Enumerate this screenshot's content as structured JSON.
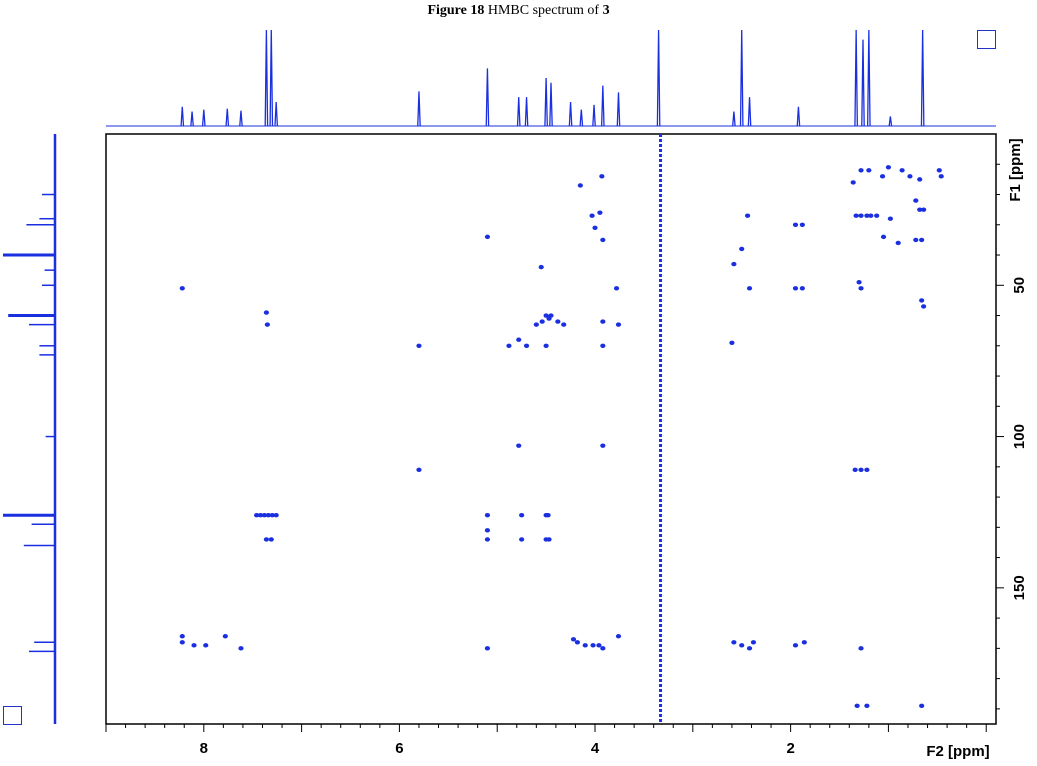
{
  "caption": {
    "label": "Figure 18",
    "text": "HMBC spectrum of",
    "compound": "3"
  },
  "chart_data": {
    "type": "scatter",
    "title": "Figure 18 HMBC spectrum of 3",
    "xlabel": "F2 [ppm]",
    "ylabel": "F1 [ppm]",
    "xlim": [
      9.0,
      -0.1
    ],
    "ylim": [
      0,
      195
    ],
    "x_ticks": [
      8,
      6,
      4,
      2
    ],
    "y_ticks": [
      50,
      100,
      150
    ],
    "colors": {
      "peaks": "#1a2fe0",
      "frame": "#000000",
      "projection": "#1a2fe0"
    },
    "h1_projection_peaks": [
      {
        "x": 8.22,
        "h": 0.2
      },
      {
        "x": 8.12,
        "h": 0.15
      },
      {
        "x": 8.0,
        "h": 0.17
      },
      {
        "x": 7.76,
        "h": 0.18
      },
      {
        "x": 7.62,
        "h": 0.16
      },
      {
        "x": 7.36,
        "h": 1.0
      },
      {
        "x": 7.31,
        "h": 1.0
      },
      {
        "x": 7.26,
        "h": 0.25
      },
      {
        "x": 5.8,
        "h": 0.36
      },
      {
        "x": 5.1,
        "h": 0.6
      },
      {
        "x": 4.78,
        "h": 0.3
      },
      {
        "x": 4.7,
        "h": 0.3
      },
      {
        "x": 4.5,
        "h": 0.5
      },
      {
        "x": 4.45,
        "h": 0.45
      },
      {
        "x": 4.25,
        "h": 0.25
      },
      {
        "x": 4.14,
        "h": 0.17
      },
      {
        "x": 4.01,
        "h": 0.22
      },
      {
        "x": 3.92,
        "h": 0.42
      },
      {
        "x": 3.76,
        "h": 0.35
      },
      {
        "x": 3.35,
        "h": 1.0
      },
      {
        "x": 2.58,
        "h": 0.15
      },
      {
        "x": 2.5,
        "h": 1.0
      },
      {
        "x": 2.42,
        "h": 0.3
      },
      {
        "x": 1.92,
        "h": 0.2
      },
      {
        "x": 1.33,
        "h": 1.0
      },
      {
        "x": 1.26,
        "h": 0.9
      },
      {
        "x": 1.2,
        "h": 1.0
      },
      {
        "x": 0.98,
        "h": 0.1
      },
      {
        "x": 0.65,
        "h": 1.0
      }
    ],
    "c13_projection_peaks": [
      {
        "y": 20,
        "w": 0.25
      },
      {
        "y": 28,
        "w": 0.3
      },
      {
        "y": 30,
        "w": 0.55
      },
      {
        "y": 40,
        "w": 1.0
      },
      {
        "y": 45,
        "w": 0.2
      },
      {
        "y": 50,
        "w": 0.25
      },
      {
        "y": 60,
        "w": 0.9
      },
      {
        "y": 63,
        "w": 0.5
      },
      {
        "y": 70,
        "w": 0.3
      },
      {
        "y": 73,
        "w": 0.3
      },
      {
        "y": 100,
        "w": 0.18
      },
      {
        "y": 126,
        "w": 1.0
      },
      {
        "y": 129,
        "w": 0.45
      },
      {
        "y": 136,
        "w": 0.6
      },
      {
        "y": 168,
        "w": 0.4
      },
      {
        "y": 171,
        "w": 0.5
      }
    ],
    "cross_peaks": [
      {
        "x": 8.22,
        "y": 51
      },
      {
        "x": 8.22,
        "y": 166
      },
      {
        "x": 8.22,
        "y": 168
      },
      {
        "x": 8.1,
        "y": 169
      },
      {
        "x": 7.98,
        "y": 169
      },
      {
        "x": 7.78,
        "y": 166
      },
      {
        "x": 7.62,
        "y": 170
      },
      {
        "x": 7.36,
        "y": 59
      },
      {
        "x": 7.35,
        "y": 63
      },
      {
        "x": 7.46,
        "y": 126
      },
      {
        "x": 7.42,
        "y": 126
      },
      {
        "x": 7.38,
        "y": 126
      },
      {
        "x": 7.34,
        "y": 126
      },
      {
        "x": 7.3,
        "y": 126
      },
      {
        "x": 7.26,
        "y": 126
      },
      {
        "x": 7.36,
        "y": 134
      },
      {
        "x": 7.31,
        "y": 134
      },
      {
        "x": 5.8,
        "y": 70
      },
      {
        "x": 5.8,
        "y": 111
      },
      {
        "x": 5.1,
        "y": 34
      },
      {
        "x": 5.1,
        "y": 126
      },
      {
        "x": 5.1,
        "y": 131
      },
      {
        "x": 5.1,
        "y": 134
      },
      {
        "x": 5.1,
        "y": 170
      },
      {
        "x": 4.88,
        "y": 70
      },
      {
        "x": 4.78,
        "y": 68
      },
      {
        "x": 4.7,
        "y": 70
      },
      {
        "x": 4.78,
        "y": 103
      },
      {
        "x": 4.75,
        "y": 126
      },
      {
        "x": 4.75,
        "y": 134
      },
      {
        "x": 4.54,
        "y": 62
      },
      {
        "x": 4.5,
        "y": 60
      },
      {
        "x": 4.47,
        "y": 61
      },
      {
        "x": 4.45,
        "y": 60
      },
      {
        "x": 4.5,
        "y": 70
      },
      {
        "x": 4.5,
        "y": 126
      },
      {
        "x": 4.48,
        "y": 126
      },
      {
        "x": 4.5,
        "y": 134
      },
      {
        "x": 4.47,
        "y": 134
      },
      {
        "x": 4.55,
        "y": 44
      },
      {
        "x": 4.6,
        "y": 63
      },
      {
        "x": 4.38,
        "y": 62
      },
      {
        "x": 4.32,
        "y": 63
      },
      {
        "x": 4.22,
        "y": 167
      },
      {
        "x": 4.18,
        "y": 168
      },
      {
        "x": 4.1,
        "y": 169
      },
      {
        "x": 4.02,
        "y": 169
      },
      {
        "x": 3.96,
        "y": 169
      },
      {
        "x": 3.92,
        "y": 170
      },
      {
        "x": 4.15,
        "y": 17
      },
      {
        "x": 3.93,
        "y": 14
      },
      {
        "x": 4.03,
        "y": 27
      },
      {
        "x": 3.95,
        "y": 26
      },
      {
        "x": 4.0,
        "y": 31
      },
      {
        "x": 3.92,
        "y": 35
      },
      {
        "x": 3.92,
        "y": 62
      },
      {
        "x": 3.92,
        "y": 70
      },
      {
        "x": 3.92,
        "y": 103
      },
      {
        "x": 3.78,
        "y": 51
      },
      {
        "x": 3.76,
        "y": 63
      },
      {
        "x": 3.76,
        "y": 166
      },
      {
        "x": 2.58,
        "y": 43
      },
      {
        "x": 2.6,
        "y": 69
      },
      {
        "x": 2.58,
        "y": 168
      },
      {
        "x": 2.5,
        "y": 38
      },
      {
        "x": 2.44,
        "y": 27
      },
      {
        "x": 2.42,
        "y": 51
      },
      {
        "x": 2.5,
        "y": 169
      },
      {
        "x": 2.42,
        "y": 170
      },
      {
        "x": 2.38,
        "y": 168
      },
      {
        "x": 1.95,
        "y": 30
      },
      {
        "x": 1.88,
        "y": 30
      },
      {
        "x": 1.95,
        "y": 51
      },
      {
        "x": 1.88,
        "y": 51
      },
      {
        "x": 1.95,
        "y": 169
      },
      {
        "x": 1.86,
        "y": 168
      },
      {
        "x": 1.36,
        "y": 16
      },
      {
        "x": 1.28,
        "y": 12
      },
      {
        "x": 1.2,
        "y": 12
      },
      {
        "x": 1.33,
        "y": 27
      },
      {
        "x": 1.28,
        "y": 27
      },
      {
        "x": 1.22,
        "y": 27
      },
      {
        "x": 1.18,
        "y": 27
      },
      {
        "x": 1.3,
        "y": 49
      },
      {
        "x": 1.28,
        "y": 51
      },
      {
        "x": 1.34,
        "y": 111
      },
      {
        "x": 1.28,
        "y": 111
      },
      {
        "x": 1.22,
        "y": 111
      },
      {
        "x": 1.28,
        "y": 170
      },
      {
        "x": 1.32,
        "y": 189
      },
      {
        "x": 1.22,
        "y": 189
      },
      {
        "x": 1.12,
        "y": 27
      },
      {
        "x": 1.06,
        "y": 14
      },
      {
        "x": 1.0,
        "y": 11
      },
      {
        "x": 0.98,
        "y": 28
      },
      {
        "x": 1.05,
        "y": 34
      },
      {
        "x": 0.9,
        "y": 36
      },
      {
        "x": 0.86,
        "y": 12
      },
      {
        "x": 0.78,
        "y": 14
      },
      {
        "x": 0.68,
        "y": 15
      },
      {
        "x": 0.72,
        "y": 22
      },
      {
        "x": 0.68,
        "y": 25
      },
      {
        "x": 0.64,
        "y": 25
      },
      {
        "x": 0.72,
        "y": 35
      },
      {
        "x": 0.66,
        "y": 35
      },
      {
        "x": 0.66,
        "y": 55
      },
      {
        "x": 0.64,
        "y": 57
      },
      {
        "x": 0.66,
        "y": 189
      },
      {
        "x": 0.48,
        "y": 12
      },
      {
        "x": 0.46,
        "y": 14
      }
    ],
    "solvent_line_x": 3.33,
    "grid": false
  }
}
